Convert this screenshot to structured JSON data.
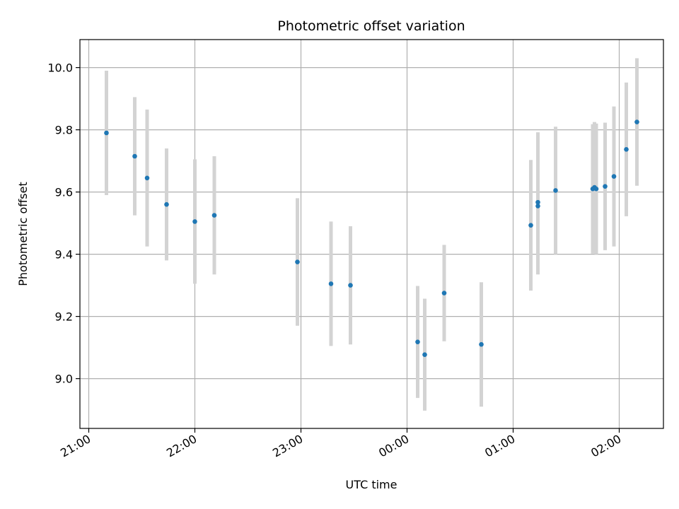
{
  "chart_data": {
    "type": "scatter",
    "title": "Photometric offset variation",
    "xlabel": "UTC time",
    "ylabel": "Photometric offset",
    "x_unit": "UTC time (24h clock; times after midnight belong to the following day)",
    "xlim": [
      "20:55",
      "02:25"
    ],
    "ylim": [
      8.84,
      10.09
    ],
    "x_ticks": [
      "21:00",
      "22:00",
      "23:00",
      "00:00",
      "01:00",
      "02:00"
    ],
    "y_ticks": [
      9.0,
      9.2,
      9.4,
      9.6,
      9.8,
      10.0
    ],
    "y_tick_labels": [
      "9.0",
      "9.2",
      "9.4",
      "9.6",
      "9.8",
      "10.0"
    ],
    "grid": true,
    "colors": {
      "points": "#1f77b4",
      "error_bars": "#d3d3d3",
      "grid": "#b0b0b0"
    },
    "points": [
      {
        "x": "21:10",
        "y": 9.79,
        "err": 0.2
      },
      {
        "x": "21:26",
        "y": 9.715,
        "err": 0.19
      },
      {
        "x": "21:33",
        "y": 9.645,
        "err": 0.22
      },
      {
        "x": "21:44",
        "y": 9.56,
        "err": 0.18
      },
      {
        "x": "22:00",
        "y": 9.505,
        "err": 0.2
      },
      {
        "x": "22:11",
        "y": 9.525,
        "err": 0.19
      },
      {
        "x": "22:58",
        "y": 9.375,
        "err": 0.205
      },
      {
        "x": "23:17",
        "y": 9.305,
        "err": 0.2
      },
      {
        "x": "23:28",
        "y": 9.3,
        "err": 0.19
      },
      {
        "x": "00:06",
        "y": 9.118,
        "err": 0.18
      },
      {
        "x": "00:10",
        "y": 9.077,
        "err": 0.18
      },
      {
        "x": "00:21",
        "y": 9.275,
        "err": 0.155
      },
      {
        "x": "00:42",
        "y": 9.11,
        "err": 0.2
      },
      {
        "x": "01:10",
        "y": 9.493,
        "err": 0.21
      },
      {
        "x": "01:14",
        "y": 9.555,
        "err": 0.22
      },
      {
        "x": "01:14",
        "y": 9.567,
        "err": 0.225
      },
      {
        "x": "01:24",
        "y": 9.605,
        "err": 0.205
      },
      {
        "x": "01:45",
        "y": 9.61,
        "err": 0.208
      },
      {
        "x": "01:46",
        "y": 9.615,
        "err": 0.21
      },
      {
        "x": "01:47",
        "y": 9.61,
        "err": 0.21
      },
      {
        "x": "01:52",
        "y": 9.618,
        "err": 0.205
      },
      {
        "x": "01:57",
        "y": 9.65,
        "err": 0.225
      },
      {
        "x": "02:04",
        "y": 9.737,
        "err": 0.215
      },
      {
        "x": "02:10",
        "y": 9.825,
        "err": 0.205
      }
    ]
  }
}
